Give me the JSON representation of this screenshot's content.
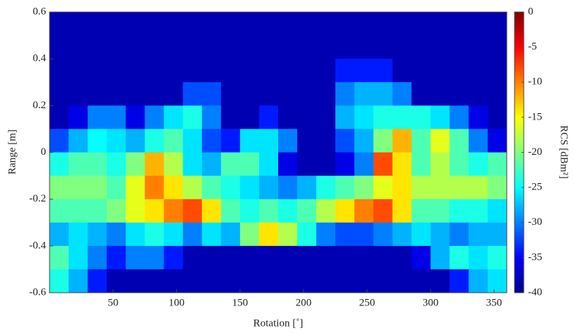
{
  "chart_data": {
    "type": "heatmap",
    "xlabel": "Rotation [˚]",
    "ylabel": "Range [m]",
    "colorbar_label": "RCS [dBm²]",
    "colormap": "jet",
    "xlim": [
      0,
      360
    ],
    "xticks": [
      50,
      100,
      150,
      200,
      250,
      300,
      350
    ],
    "ylim": [
      -0.6,
      0.6
    ],
    "yticks": [
      -0.6,
      -0.4,
      -0.2,
      0,
      0.2,
      0.4,
      0.6
    ],
    "clim": [
      -40,
      0
    ],
    "cticks": [
      0,
      -5,
      -10,
      -15,
      -20,
      -25,
      -30,
      -35,
      -40
    ],
    "x": [
      7.5,
      22.5,
      37.5,
      52.5,
      67.5,
      82.5,
      97.5,
      112.5,
      127.5,
      142.5,
      157.5,
      172.5,
      187.5,
      202.5,
      217.5,
      232.5,
      247.5,
      262.5,
      277.5,
      292.5,
      307.5,
      322.5,
      337.5,
      352.5
    ],
    "y": [
      0.55,
      0.45,
      0.35,
      0.25,
      0.15,
      0.05,
      -0.05,
      -0.15,
      -0.25,
      -0.35,
      -0.45,
      -0.55
    ],
    "z": [
      [
        -38,
        -38,
        -38,
        -38,
        -38,
        -38,
        -38,
        -38,
        -38,
        -38,
        -38,
        -38,
        -38,
        -38,
        -38,
        -38,
        -38,
        -38,
        -38,
        -38,
        -38,
        -38,
        -38,
        -38
      ],
      [
        -38,
        -38,
        -38,
        -38,
        -38,
        -38,
        -38,
        -38,
        -38,
        -38,
        -38,
        -38,
        -38,
        -38,
        -38,
        -38,
        -38,
        -38,
        -38,
        -38,
        -38,
        -38,
        -38,
        -38
      ],
      [
        -38,
        -38,
        -38,
        -38,
        -38,
        -38,
        -38,
        -38,
        -38,
        -38,
        -38,
        -38,
        -38,
        -38,
        -38,
        -34,
        -34,
        -34,
        -38,
        -38,
        -38,
        -38,
        -38,
        -38
      ],
      [
        -38,
        -38,
        -38,
        -38,
        -38,
        -38,
        -38,
        -32,
        -32,
        -38,
        -38,
        -38,
        -38,
        -38,
        -38,
        -30,
        -28,
        -28,
        -30,
        -38,
        -38,
        -38,
        -38,
        -38
      ],
      [
        -38,
        -36,
        -30,
        -30,
        -36,
        -30,
        -26,
        -24,
        -30,
        -38,
        -38,
        -34,
        -38,
        -38,
        -38,
        -28,
        -26,
        -24,
        -24,
        -24,
        -26,
        -30,
        -36,
        -38
      ],
      [
        -32,
        -28,
        -25,
        -26,
        -28,
        -24,
        -22,
        -26,
        -32,
        -34,
        -26,
        -26,
        -30,
        -38,
        -38,
        -32,
        -28,
        -20,
        -12,
        -22,
        -16,
        -22,
        -30,
        -36
      ],
      [
        -24,
        -22,
        -22,
        -24,
        -20,
        -12,
        -18,
        -26,
        -28,
        -22,
        -22,
        -26,
        -36,
        -38,
        -38,
        -36,
        -30,
        -8,
        -14,
        -22,
        -18,
        -22,
        -24,
        -22
      ],
      [
        -20,
        -20,
        -20,
        -22,
        -16,
        -10,
        -14,
        -18,
        -22,
        -24,
        -26,
        -28,
        -30,
        -28,
        -24,
        -22,
        -20,
        -16,
        -14,
        -18,
        -18,
        -18,
        -18,
        -20
      ],
      [
        -22,
        -22,
        -22,
        -20,
        -16,
        -14,
        -10,
        -8,
        -14,
        -22,
        -24,
        -22,
        -24,
        -22,
        -18,
        -14,
        -10,
        -8,
        -14,
        -22,
        -22,
        -24,
        -24,
        -26
      ],
      [
        -28,
        -26,
        -28,
        -30,
        -26,
        -24,
        -26,
        -30,
        -26,
        -28,
        -20,
        -14,
        -18,
        -24,
        -30,
        -32,
        -32,
        -30,
        -28,
        -26,
        -28,
        -30,
        -28,
        -28
      ],
      [
        -22,
        -26,
        -30,
        -34,
        -30,
        -30,
        -34,
        -38,
        -38,
        -38,
        -38,
        -38,
        -38,
        -38,
        -38,
        -38,
        -38,
        -38,
        -38,
        -36,
        -28,
        -24,
        -26,
        -24
      ],
      [
        -24,
        -28,
        -34,
        -38,
        -38,
        -38,
        -38,
        -38,
        -38,
        -38,
        -38,
        -38,
        -38,
        -38,
        -38,
        -38,
        -38,
        -38,
        -38,
        -38,
        -38,
        -34,
        -28,
        -26
      ]
    ]
  }
}
